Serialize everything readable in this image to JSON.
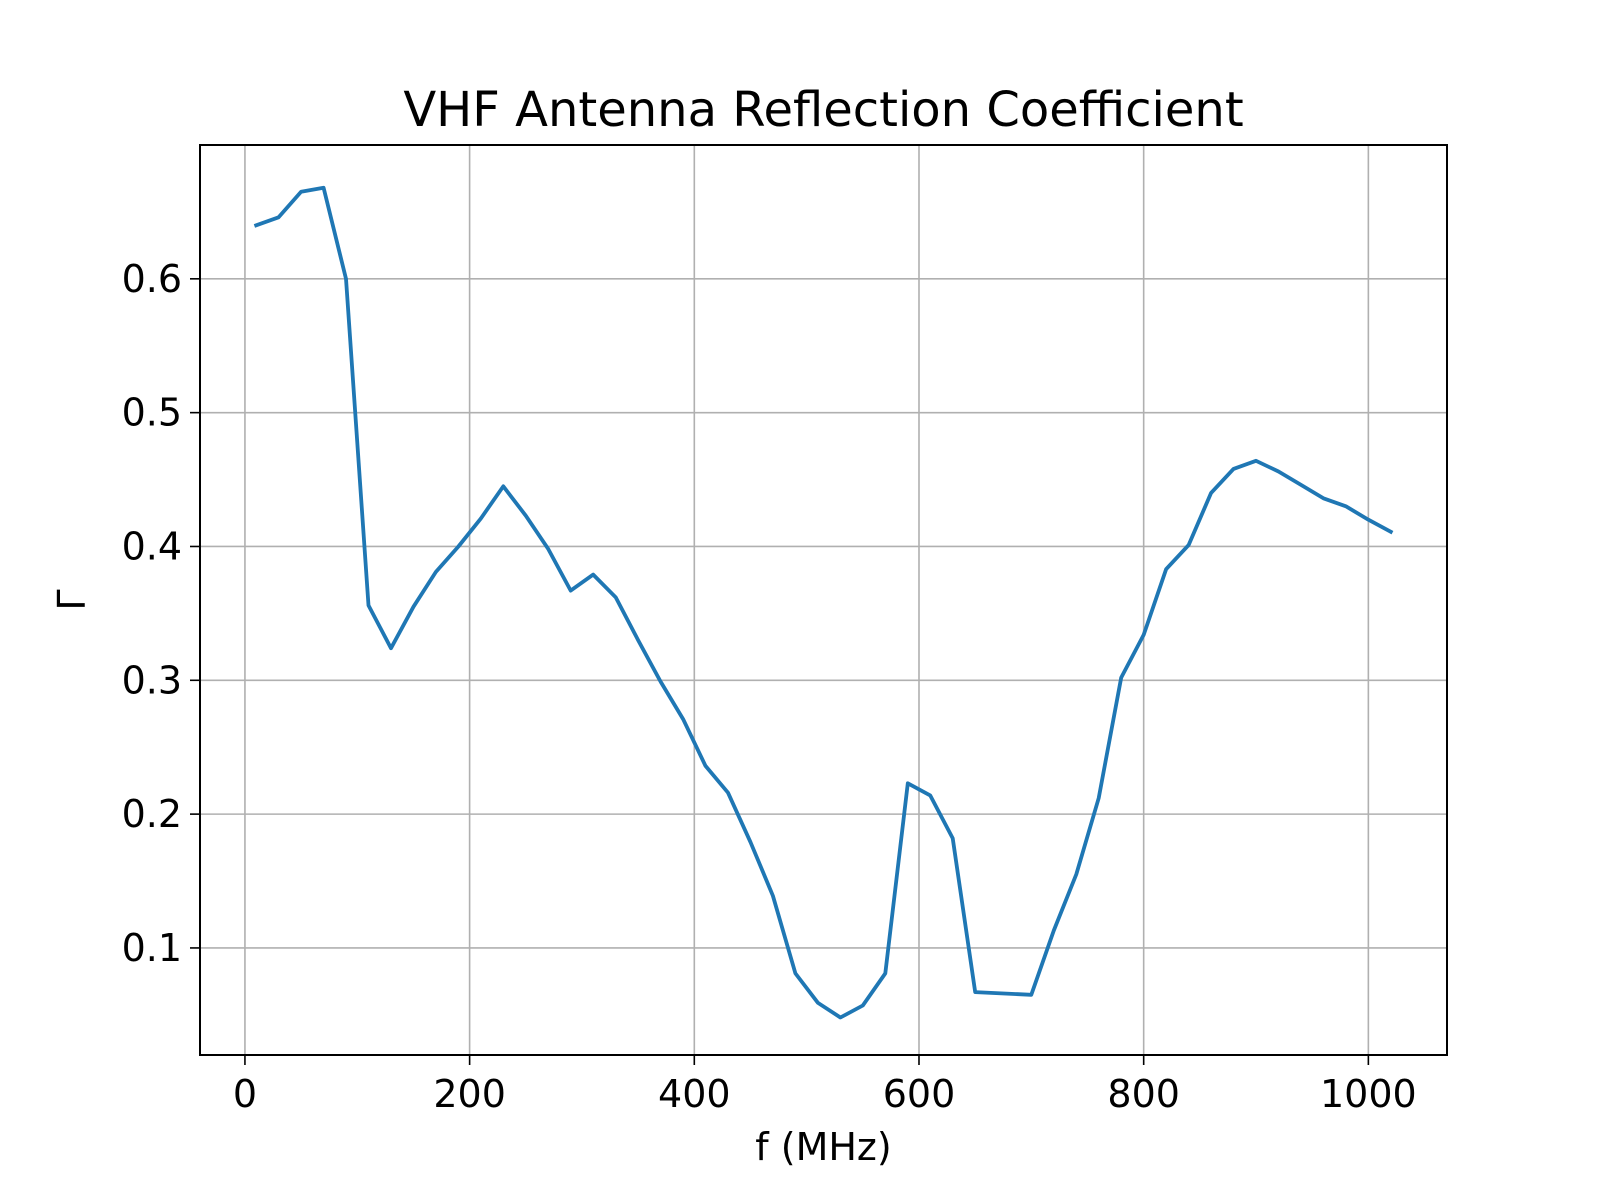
{
  "chart_data": {
    "type": "line",
    "title": "VHF Antenna Reflection Coefficient",
    "xlabel": "f (MHz)",
    "ylabel": "Γ",
    "xlim": [
      -40,
      1070
    ],
    "ylim": [
      0.02,
      0.7
    ],
    "xticks": [
      0,
      200,
      400,
      600,
      800,
      1000
    ],
    "xtick_labels": [
      "0",
      "200",
      "400",
      "600",
      "800",
      "1000"
    ],
    "yticks": [
      0.1,
      0.2,
      0.3,
      0.4,
      0.5,
      0.6
    ],
    "ytick_labels": [
      "0.1",
      "0.2",
      "0.3",
      "0.4",
      "0.5",
      "0.6"
    ],
    "grid": true,
    "series": [
      {
        "color": "#1f77b4",
        "x": [
          10,
          30,
          50,
          70,
          90,
          110,
          130,
          150,
          170,
          190,
          210,
          230,
          250,
          270,
          290,
          310,
          330,
          350,
          370,
          390,
          410,
          430,
          450,
          470,
          490,
          510,
          530,
          550,
          570,
          590,
          610,
          630,
          650,
          700,
          720,
          740,
          760,
          780,
          800,
          820,
          840,
          860,
          880,
          900,
          920,
          940,
          960,
          980,
          1000,
          1020
        ],
        "y": [
          0.64,
          0.646,
          0.665,
          0.668,
          0.6,
          0.356,
          0.324,
          0.355,
          0.381,
          0.4,
          0.421,
          0.445,
          0.423,
          0.398,
          0.367,
          0.379,
          0.362,
          0.33,
          0.299,
          0.271,
          0.236,
          0.216,
          0.179,
          0.139,
          0.081,
          0.059,
          0.048,
          0.057,
          0.081,
          0.223,
          0.214,
          0.182,
          0.067,
          0.065,
          0.113,
          0.155,
          0.212,
          0.302,
          0.334,
          0.383,
          0.401,
          0.44,
          0.458,
          0.464,
          0.456,
          0.446,
          0.436,
          0.43,
          0.42,
          0.411
        ]
      }
    ]
  }
}
